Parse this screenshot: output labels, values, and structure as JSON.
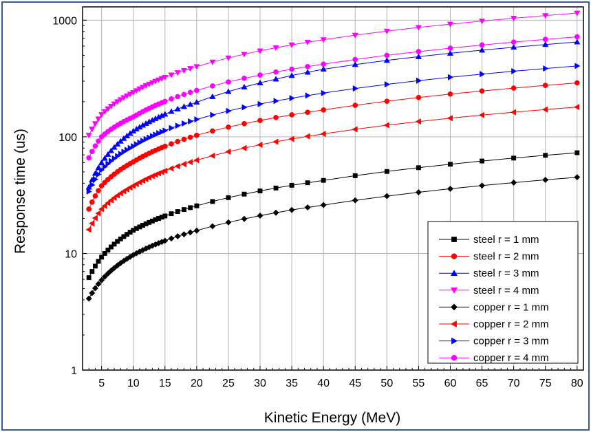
{
  "chart_data": {
    "type": "line",
    "title": "",
    "xlabel": "Kinetic Energy (MeV)",
    "ylabel": "Response time (us)",
    "xlim": [
      2,
      81
    ],
    "ylim": [
      1,
      1300
    ],
    "yscale": "log",
    "grid": true,
    "x_ticks": [
      5,
      10,
      15,
      20,
      25,
      30,
      35,
      40,
      45,
      50,
      55,
      60,
      65,
      70,
      75,
      80
    ],
    "y_ticks": [
      1,
      10,
      100,
      1000
    ],
    "legend_position": "bottom-right",
    "series": [
      {
        "name": "steel r = 1 mm",
        "marker": "square",
        "color": "#000000",
        "x": [
          3,
          5,
          10,
          20,
          40,
          80
        ],
        "values": [
          6.2,
          9.3,
          15.8,
          25.6,
          42.3,
          73
        ]
      },
      {
        "name": "steel r = 2 mm",
        "marker": "circle",
        "color": "#ff0000",
        "x": [
          3,
          5,
          10,
          20,
          40,
          80
        ],
        "values": [
          24,
          38,
          61,
          103,
          170,
          290
        ]
      },
      {
        "name": "steel r = 3 mm",
        "marker": "triangle-up",
        "color": "#0000ff",
        "x": [
          3,
          5,
          10,
          20,
          40,
          80
        ],
        "values": [
          37,
          60,
          112,
          198,
          380,
          650
        ]
      },
      {
        "name": "steel r = 4 mm",
        "marker": "triangle-down",
        "color": "#ff00ff",
        "x": [
          3,
          5,
          10,
          20,
          40,
          80
        ],
        "values": [
          103,
          155,
          240,
          400,
          680,
          1150
        ]
      },
      {
        "name": "copper r = 1 mm",
        "marker": "diamond",
        "color": "#000000",
        "x": [
          3,
          5,
          10,
          20,
          40,
          80
        ],
        "values": [
          4.1,
          5.9,
          9.7,
          15.7,
          26,
          45
        ]
      },
      {
        "name": "copper r = 2 mm",
        "marker": "triangle-left",
        "color": "#ff0000",
        "x": [
          3,
          5,
          10,
          20,
          40,
          80
        ],
        "values": [
          16,
          24,
          38,
          63,
          106,
          180
        ]
      },
      {
        "name": "copper r = 3 mm",
        "marker": "triangle-right",
        "color": "#0000ff",
        "x": [
          3,
          5,
          10,
          20,
          40,
          80
        ],
        "values": [
          34,
          52,
          83,
          141,
          237,
          405
        ]
      },
      {
        "name": "copper r = 4 mm",
        "marker": "circle",
        "color": "#ff00ff",
        "x": [
          3,
          5,
          10,
          20,
          40,
          80
        ],
        "values": [
          66,
          100,
          148,
          250,
          420,
          720
        ]
      }
    ]
  }
}
